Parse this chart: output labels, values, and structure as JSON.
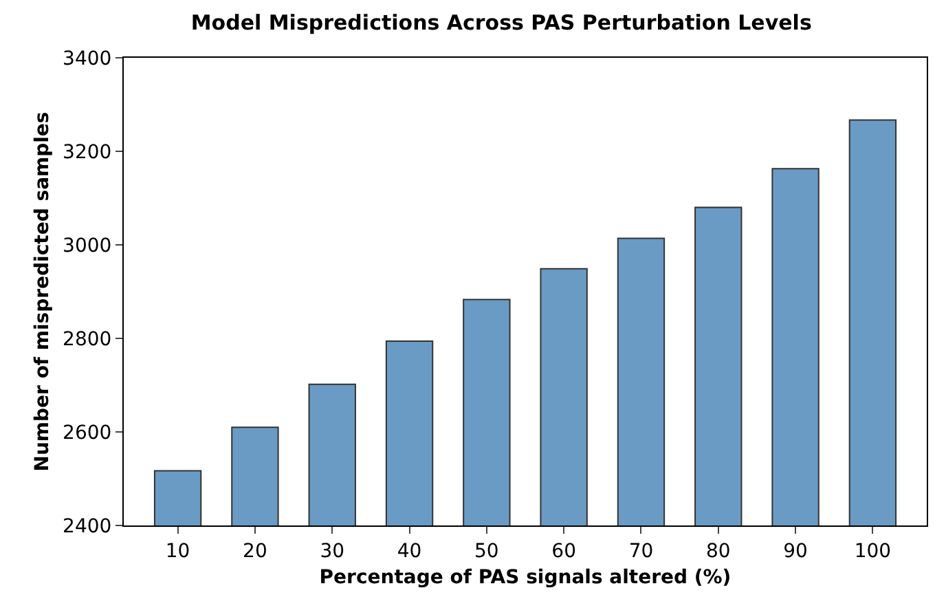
{
  "chart_data": {
    "type": "bar",
    "title": "Model Mispredictions Across PAS Perturbation Levels",
    "xlabel": "Percentage of PAS signals altered (%)",
    "ylabel": "Number of mispredicted samples",
    "categories": [
      "10",
      "20",
      "30",
      "40",
      "50",
      "60",
      "70",
      "80",
      "90",
      "100"
    ],
    "values": [
      2517,
      2610,
      2702,
      2794,
      2883,
      2949,
      3014,
      3080,
      3163,
      3267
    ],
    "color": "#6a9bc4",
    "ylim": [
      2400,
      3400
    ],
    "yticks": [
      2400,
      2600,
      2800,
      3000,
      3200,
      3400
    ],
    "grid": false
  }
}
